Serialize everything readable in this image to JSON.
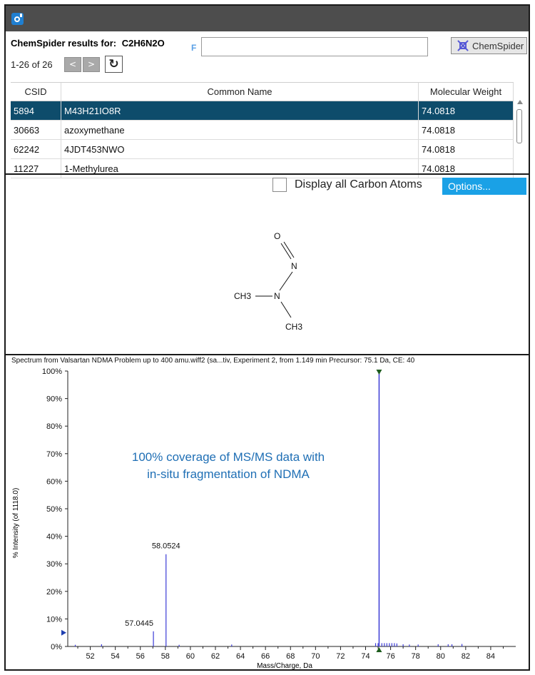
{
  "header": {
    "app_icon": "app-logo-icon"
  },
  "results": {
    "title_prefix": "ChemSpider results for:",
    "formula": "C2H6N2O",
    "filter_label": "F",
    "search_value": "",
    "chemspider_button": "ChemSpider",
    "count_text": "1-26 of 26",
    "prev_label": "<",
    "next_label": ">",
    "refresh_icon": "refresh-icon"
  },
  "table": {
    "headers": [
      "CSID",
      "Common Name",
      "Molecular Weight"
    ],
    "rows": [
      {
        "csid": "5894",
        "name": "M43H21IO8R",
        "mw": "74.0818",
        "selected": true
      },
      {
        "csid": "30663",
        "name": "azoxymethane",
        "mw": "74.0818",
        "selected": false
      },
      {
        "csid": "62242",
        "name": "4JDT453NWO",
        "mw": "74.0818",
        "selected": false
      },
      {
        "csid": "11227",
        "name": "1-Methylurea",
        "mw": "74.0818",
        "selected": false
      }
    ]
  },
  "structure": {
    "display_carbon_label": "Display all Carbon Atoms",
    "display_carbon_checked": false,
    "options_button": "Options...",
    "atoms": {
      "o": "O",
      "n1": "N",
      "n2": "N",
      "ch3_left": "CH3",
      "ch3_bottom": "CH3"
    }
  },
  "spectrum": {
    "title": "Spectrum from Valsartan NDMA Problem up to 400 amu.wiff2 (sa...tiv, Experiment 2, from 1.149 min Precursor: 75.1 Da, CE: 40",
    "annotation_line1": "100% coverage of MS/MS data with",
    "annotation_line2": "in-situ fragmentation of NDMA",
    "colors": {
      "bars": "#3b3bd6",
      "annotation": "#1f6fb5",
      "marker": "#1d5c1d"
    }
  },
  "chart_data": {
    "type": "bar",
    "xlabel": "Mass/Charge, Da",
    "ylabel": "% Intensity (of 1118.0)",
    "xlim": [
      50.2,
      86.0
    ],
    "ylim": [
      0,
      100
    ],
    "xticks": [
      "52",
      "54",
      "56",
      "58",
      "60",
      "62",
      "64",
      "66",
      "68",
      "70",
      "72",
      "74",
      "76",
      "78",
      "80",
      "82",
      "84"
    ],
    "yticks": [
      "0%",
      "10%",
      "20%",
      "30%",
      "40%",
      "50%",
      "60%",
      "70%",
      "80%",
      "90%",
      "100%"
    ],
    "peaks": [
      {
        "x": 50.8,
        "y": 0.6
      },
      {
        "x": 52.9,
        "y": 0.8
      },
      {
        "x": 57.0445,
        "y": 5.5,
        "label": "57.0445"
      },
      {
        "x": 58.0524,
        "y": 33.5,
        "label": "58.0524"
      },
      {
        "x": 59.1,
        "y": 0.6
      },
      {
        "x": 63.3,
        "y": 0.7
      },
      {
        "x": 75.08,
        "y": 100
      },
      {
        "x": 74.8,
        "y": 1.2
      },
      {
        "x": 75.0,
        "y": 1.2
      },
      {
        "x": 75.3,
        "y": 1.2
      },
      {
        "x": 75.5,
        "y": 1.2
      },
      {
        "x": 75.7,
        "y": 1.2
      },
      {
        "x": 75.9,
        "y": 1.2
      },
      {
        "x": 76.1,
        "y": 1.2
      },
      {
        "x": 76.3,
        "y": 1.2
      },
      {
        "x": 76.5,
        "y": 1.1
      },
      {
        "x": 77.0,
        "y": 0.8
      },
      {
        "x": 77.5,
        "y": 0.7
      },
      {
        "x": 78.2,
        "y": 0.7
      },
      {
        "x": 79.8,
        "y": 0.8
      },
      {
        "x": 80.6,
        "y": 0.8
      },
      {
        "x": 80.9,
        "y": 0.8
      },
      {
        "x": 81.7,
        "y": 0.9
      }
    ]
  }
}
